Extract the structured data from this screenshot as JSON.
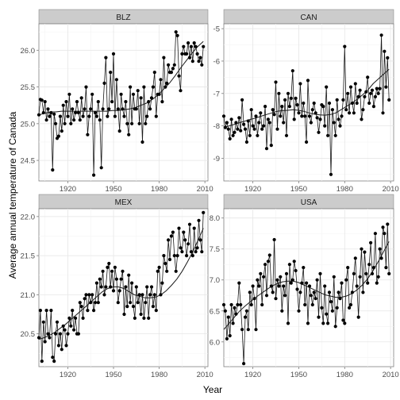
{
  "chart_data": {
    "type": "line",
    "xlabel": "Year",
    "ylabel": "Average annual temperature of Canada",
    "grid": true,
    "facets": [
      {
        "name": "BLZ",
        "xlim": [
          1901,
          2012
        ],
        "xticks": [
          1920,
          1950,
          1980,
          2010
        ],
        "ylim": [
          24.22,
          26.36
        ],
        "yticks": [
          24.5,
          25.0,
          25.5,
          26.0
        ],
        "ytick_labels": [
          "24.5",
          "25.0",
          "25.5",
          "26.0"
        ],
        "x": [
          1901,
          1902,
          1903,
          1904,
          1905,
          1906,
          1907,
          1908,
          1909,
          1910,
          1911,
          1912,
          1913,
          1914,
          1915,
          1916,
          1917,
          1918,
          1919,
          1920,
          1921,
          1922,
          1923,
          1924,
          1925,
          1926,
          1927,
          1928,
          1929,
          1930,
          1931,
          1932,
          1933,
          1934,
          1935,
          1936,
          1937,
          1938,
          1939,
          1940,
          1941,
          1942,
          1943,
          1944,
          1945,
          1946,
          1947,
          1948,
          1949,
          1950,
          1951,
          1952,
          1953,
          1954,
          1955,
          1956,
          1957,
          1958,
          1959,
          1960,
          1961,
          1962,
          1963,
          1964,
          1965,
          1966,
          1967,
          1968,
          1969,
          1970,
          1971,
          1972,
          1973,
          1974,
          1975,
          1976,
          1977,
          1978,
          1979,
          1980,
          1981,
          1982,
          1983,
          1984,
          1985,
          1986,
          1987,
          1988,
          1989,
          1990,
          1991,
          1992,
          1993,
          1994,
          1995,
          1996,
          1997,
          1998,
          1999,
          2000,
          2001,
          2002,
          2003,
          2004,
          2005,
          2006,
          2007,
          2008,
          2009
        ],
        "y": [
          25.12,
          25.33,
          25.32,
          25.15,
          25.3,
          25.05,
          25.2,
          25.1,
          25.15,
          24.37,
          25.13,
          25.0,
          24.8,
          24.83,
          25.1,
          24.9,
          25.25,
          25.0,
          25.3,
          25.1,
          25.4,
          25.0,
          25.2,
          25.05,
          25.15,
          25.3,
          25.15,
          25.05,
          25.35,
          25.1,
          25.2,
          25.5,
          24.85,
          25.1,
          25.2,
          25.4,
          24.3,
          25.15,
          25.1,
          25.3,
          25.05,
          24.4,
          25.2,
          25.55,
          25.9,
          25.1,
          25.2,
          25.7,
          25.3,
          25.95,
          25.1,
          25.6,
          25.2,
          24.9,
          25.4,
          25.2,
          25.1,
          25.3,
          25.0,
          24.85,
          25.5,
          25.0,
          25.4,
          25.2,
          25.2,
          25.45,
          25.0,
          25.35,
          24.75,
          25.5,
          25.0,
          25.1,
          25.3,
          25.2,
          25.35,
          25.5,
          25.7,
          25.1,
          25.4,
          25.4,
          25.6,
          25.3,
          25.9,
          25.5,
          25.55,
          25.8,
          25.7,
          25.7,
          25.75,
          25.8,
          26.25,
          26.2,
          25.65,
          25.45,
          25.95,
          26.05,
          25.95,
          25.95,
          26.1,
          25.9,
          26.05,
          25.85,
          26.1,
          26.05,
          25.95,
          25.85,
          25.9,
          25.8,
          26.05
        ],
        "trend": [
          25.12,
          25.14,
          25.16,
          25.16,
          25.17,
          25.17,
          25.17,
          25.17,
          25.17,
          25.17,
          25.17,
          25.17,
          25.17,
          25.18,
          25.18,
          25.19,
          25.2,
          25.22,
          25.25,
          25.28,
          25.33,
          25.39,
          25.47,
          25.55,
          25.65,
          25.76,
          25.86,
          25.96,
          26.05,
          26.12
        ]
      },
      {
        "name": "CAN",
        "xlim": [
          1901,
          2012
        ],
        "xticks": [
          1920,
          1950,
          1980,
          2010
        ],
        "ylim": [
          -9.7,
          -4.85
        ],
        "yticks": [
          -9,
          -8,
          -7,
          -6,
          -5
        ],
        "ytick_labels": [
          "-9",
          "-8",
          "-7",
          "-6",
          "-5"
        ],
        "x": [
          1901,
          1902,
          1903,
          1904,
          1905,
          1906,
          1907,
          1908,
          1909,
          1910,
          1911,
          1912,
          1913,
          1914,
          1915,
          1916,
          1917,
          1918,
          1919,
          1920,
          1921,
          1922,
          1923,
          1924,
          1925,
          1926,
          1927,
          1928,
          1929,
          1930,
          1931,
          1932,
          1933,
          1934,
          1935,
          1936,
          1937,
          1938,
          1939,
          1940,
          1941,
          1942,
          1943,
          1944,
          1945,
          1946,
          1947,
          1948,
          1949,
          1950,
          1951,
          1952,
          1953,
          1954,
          1955,
          1956,
          1957,
          1958,
          1959,
          1960,
          1961,
          1962,
          1963,
          1964,
          1965,
          1966,
          1967,
          1968,
          1969,
          1970,
          1971,
          1972,
          1973,
          1974,
          1975,
          1976,
          1977,
          1978,
          1979,
          1980,
          1981,
          1982,
          1983,
          1984,
          1985,
          1986,
          1987,
          1988,
          1989,
          1990,
          1991,
          1992,
          1993,
          1994,
          1995,
          1996,
          1997,
          1998,
          1999,
          2000,
          2001,
          2002,
          2003,
          2004,
          2005,
          2006,
          2007,
          2008,
          2009
        ],
        "y": [
          -7.7,
          -8.05,
          -7.9,
          -8.1,
          -8.4,
          -7.8,
          -8.3,
          -8.2,
          -7.9,
          -8.1,
          -7.75,
          -8.15,
          -7.2,
          -7.95,
          -8.1,
          -8.5,
          -7.85,
          -8.3,
          -7.5,
          -8.0,
          -8.1,
          -7.7,
          -8.3,
          -7.9,
          -7.6,
          -8.1,
          -8.0,
          -7.4,
          -8.7,
          -7.8,
          -7.9,
          -8.6,
          -7.5,
          -7.65,
          -6.65,
          -8.1,
          -7.0,
          -7.7,
          -7.4,
          -7.9,
          -7.2,
          -8.3,
          -7.0,
          -7.4,
          -7.15,
          -6.3,
          -7.8,
          -7.15,
          -7.35,
          -7.6,
          -6.7,
          -7.7,
          -7.3,
          -7.7,
          -8.5,
          -6.6,
          -7.7,
          -7.9,
          -7.5,
          -7.3,
          -7.6,
          -7.75,
          -8.2,
          -7.8,
          -7.35,
          -7.4,
          -8.0,
          -6.8,
          -8.3,
          -7.3,
          -9.5,
          -7.5,
          -7.9,
          -8.3,
          -7.2,
          -7.8,
          -8.0,
          -7.7,
          -7.2,
          -5.55,
          -7.5,
          -7.0,
          -7.6,
          -6.8,
          -7.3,
          -7.6,
          -6.7,
          -7.3,
          -7.1,
          -6.9,
          -7.8,
          -7.5,
          -7.1,
          -6.95,
          -6.5,
          -7.3,
          -7.0,
          -6.9,
          -7.4,
          -7.1,
          -6.85,
          -7.0,
          -6.85,
          -5.2,
          -7.6,
          -5.7,
          -6.8,
          -5.9,
          -7.2
        ],
        "trend": [
          -8.05,
          -8.0,
          -7.95,
          -7.9,
          -7.85,
          -7.8,
          -7.76,
          -7.7,
          -7.65,
          -7.6,
          -7.55,
          -7.53,
          -7.52,
          -7.5,
          -7.52,
          -7.55,
          -7.6,
          -7.64,
          -7.66,
          -7.67,
          -7.65,
          -7.6,
          -7.5,
          -7.4,
          -7.3,
          -7.18,
          -7.05,
          -6.9,
          -6.7,
          -6.55,
          -6.4,
          -6.25
        ]
      },
      {
        "name": "MEX",
        "xlim": [
          1901,
          2012
        ],
        "xticks": [
          1920,
          1950,
          1980,
          2010
        ],
        "ylim": [
          20.08,
          22.1
        ],
        "yticks": [
          20.5,
          21.0,
          21.5,
          22.0
        ],
        "ytick_labels": [
          "20.5",
          "21.0",
          "21.5",
          "22.0"
        ],
        "x": [
          1901,
          1902,
          1903,
          1904,
          1905,
          1906,
          1907,
          1908,
          1909,
          1910,
          1911,
          1912,
          1913,
          1914,
          1915,
          1916,
          1917,
          1918,
          1919,
          1920,
          1921,
          1922,
          1923,
          1924,
          1925,
          1926,
          1927,
          1928,
          1929,
          1930,
          1931,
          1932,
          1933,
          1934,
          1935,
          1936,
          1937,
          1938,
          1939,
          1940,
          1941,
          1942,
          1943,
          1944,
          1945,
          1946,
          1947,
          1948,
          1949,
          1950,
          1951,
          1952,
          1953,
          1954,
          1955,
          1956,
          1957,
          1958,
          1959,
          1960,
          1961,
          1962,
          1963,
          1964,
          1965,
          1966,
          1967,
          1968,
          1969,
          1970,
          1971,
          1972,
          1973,
          1974,
          1975,
          1976,
          1977,
          1978,
          1979,
          1980,
          1981,
          1982,
          1983,
          1984,
          1985,
          1986,
          1987,
          1988,
          1989,
          1990,
          1991,
          1992,
          1993,
          1994,
          1995,
          1996,
          1997,
          1998,
          1999,
          2000,
          2001,
          2002,
          2003,
          2004,
          2005,
          2006,
          2007,
          2008,
          2009
        ],
        "y": [
          20.45,
          20.8,
          20.15,
          20.65,
          20.4,
          20.8,
          20.5,
          20.45,
          20.8,
          20.2,
          20.15,
          20.5,
          20.65,
          20.35,
          20.5,
          20.3,
          20.6,
          20.55,
          20.35,
          20.5,
          20.7,
          20.6,
          20.8,
          20.55,
          20.7,
          20.5,
          20.5,
          20.9,
          20.85,
          20.7,
          20.95,
          21.0,
          20.8,
          21.0,
          20.9,
          21.0,
          20.8,
          20.9,
          21.15,
          20.9,
          21.2,
          21.1,
          21.3,
          21.0,
          21.1,
          21.35,
          21.4,
          21.1,
          21.3,
          21.05,
          21.35,
          21.2,
          20.9,
          21.05,
          21.2,
          21.3,
          20.75,
          21.1,
          20.85,
          21.25,
          20.9,
          21.15,
          20.85,
          20.7,
          21.1,
          20.9,
          21.0,
          20.75,
          21.0,
          20.7,
          20.9,
          21.1,
          20.7,
          21.0,
          21.1,
          20.85,
          21.0,
          20.8,
          21.3,
          21.35,
          21.0,
          21.15,
          21.5,
          21.4,
          21.3,
          21.7,
          21.45,
          21.75,
          21.8,
          21.5,
          21.3,
          21.5,
          21.85,
          21.6,
          21.55,
          21.8,
          21.7,
          21.5,
          21.65,
          21.9,
          21.55,
          21.5,
          21.85,
          21.55,
          21.6,
          21.95,
          21.7,
          21.55,
          22.05
        ],
        "trend": [
          20.43,
          20.45,
          20.48,
          20.52,
          20.57,
          20.62,
          20.68,
          20.74,
          20.8,
          20.86,
          20.92,
          20.98,
          21.04,
          21.08,
          21.1,
          21.1,
          21.08,
          21.04,
          21.0,
          20.98,
          20.96,
          20.96,
          20.97,
          21.0,
          21.05,
          21.12,
          21.2,
          21.3,
          21.42,
          21.55,
          21.7,
          21.85
        ]
      },
      {
        "name": "USA",
        "xlim": [
          1901,
          2012
        ],
        "xticks": [
          1920,
          1950,
          1980,
          2010
        ],
        "ylim": [
          5.6,
          8.15
        ],
        "yticks": [
          6.0,
          6.5,
          7.0,
          7.5,
          8.0
        ],
        "ytick_labels": [
          "6.0",
          "6.5",
          "7.0",
          "7.5",
          "8.0"
        ],
        "x": [
          1901,
          1902,
          1903,
          1904,
          1905,
          1906,
          1907,
          1908,
          1909,
          1910,
          1911,
          1912,
          1913,
          1914,
          1915,
          1916,
          1917,
          1918,
          1919,
          1920,
          1921,
          1922,
          1923,
          1924,
          1925,
          1926,
          1927,
          1928,
          1929,
          1930,
          1931,
          1932,
          1933,
          1934,
          1935,
          1936,
          1937,
          1938,
          1939,
          1940,
          1941,
          1942,
          1943,
          1944,
          1945,
          1946,
          1947,
          1948,
          1949,
          1950,
          1951,
          1952,
          1953,
          1954,
          1955,
          1956,
          1957,
          1958,
          1959,
          1960,
          1961,
          1962,
          1963,
          1964,
          1965,
          1966,
          1967,
          1968,
          1969,
          1970,
          1971,
          1972,
          1973,
          1974,
          1975,
          1976,
          1977,
          1978,
          1979,
          1980,
          1981,
          1982,
          1983,
          1984,
          1985,
          1986,
          1987,
          1988,
          1989,
          1990,
          1991,
          1992,
          1993,
          1994,
          1995,
          1996,
          1997,
          1998,
          1999,
          2000,
          2001,
          2002,
          2003,
          2004,
          2005,
          2006,
          2007,
          2008,
          2009
        ],
        "y": [
          6.6,
          6.5,
          6.05,
          6.4,
          6.1,
          6.6,
          6.3,
          6.55,
          6.45,
          6.6,
          6.95,
          6.6,
          6.2,
          5.65,
          6.4,
          6.5,
          6.2,
          6.8,
          6.6,
          6.9,
          6.7,
          6.2,
          7.0,
          6.9,
          7.1,
          6.6,
          7.05,
          7.25,
          6.75,
          7.3,
          7.4,
          6.9,
          6.8,
          7.65,
          6.7,
          7.0,
          6.9,
          7.05,
          6.5,
          6.9,
          6.75,
          7.1,
          6.3,
          7.25,
          6.95,
          7.0,
          7.3,
          7.15,
          6.85,
          6.5,
          6.8,
          6.95,
          7.2,
          6.6,
          6.95,
          6.3,
          6.9,
          6.75,
          6.6,
          6.8,
          6.7,
          7.0,
          6.4,
          7.1,
          6.55,
          6.3,
          6.9,
          6.45,
          6.3,
          6.8,
          6.65,
          6.5,
          7.05,
          6.25,
          6.55,
          6.8,
          6.7,
          6.95,
          6.35,
          6.3,
          7.0,
          7.2,
          6.55,
          6.6,
          6.8,
          7.1,
          7.35,
          6.9,
          6.4,
          7.05,
          7.5,
          6.8,
          7.45,
          7.1,
          6.95,
          7.25,
          7.6,
          7.1,
          7.2,
          7.75,
          6.95,
          7.05,
          7.5,
          7.35,
          7.85,
          7.75,
          7.2,
          7.9,
          7.1
        ],
        "trend": [
          6.2,
          6.3,
          6.4,
          6.5,
          6.58,
          6.65,
          6.72,
          6.78,
          6.84,
          6.9,
          6.94,
          6.97,
          6.98,
          6.98,
          6.96,
          6.92,
          6.88,
          6.84,
          6.8,
          6.76,
          6.74,
          6.72,
          6.72,
          6.74,
          6.78,
          6.84,
          6.92,
          7.02,
          7.15,
          7.3,
          7.46,
          7.62
        ]
      }
    ]
  }
}
